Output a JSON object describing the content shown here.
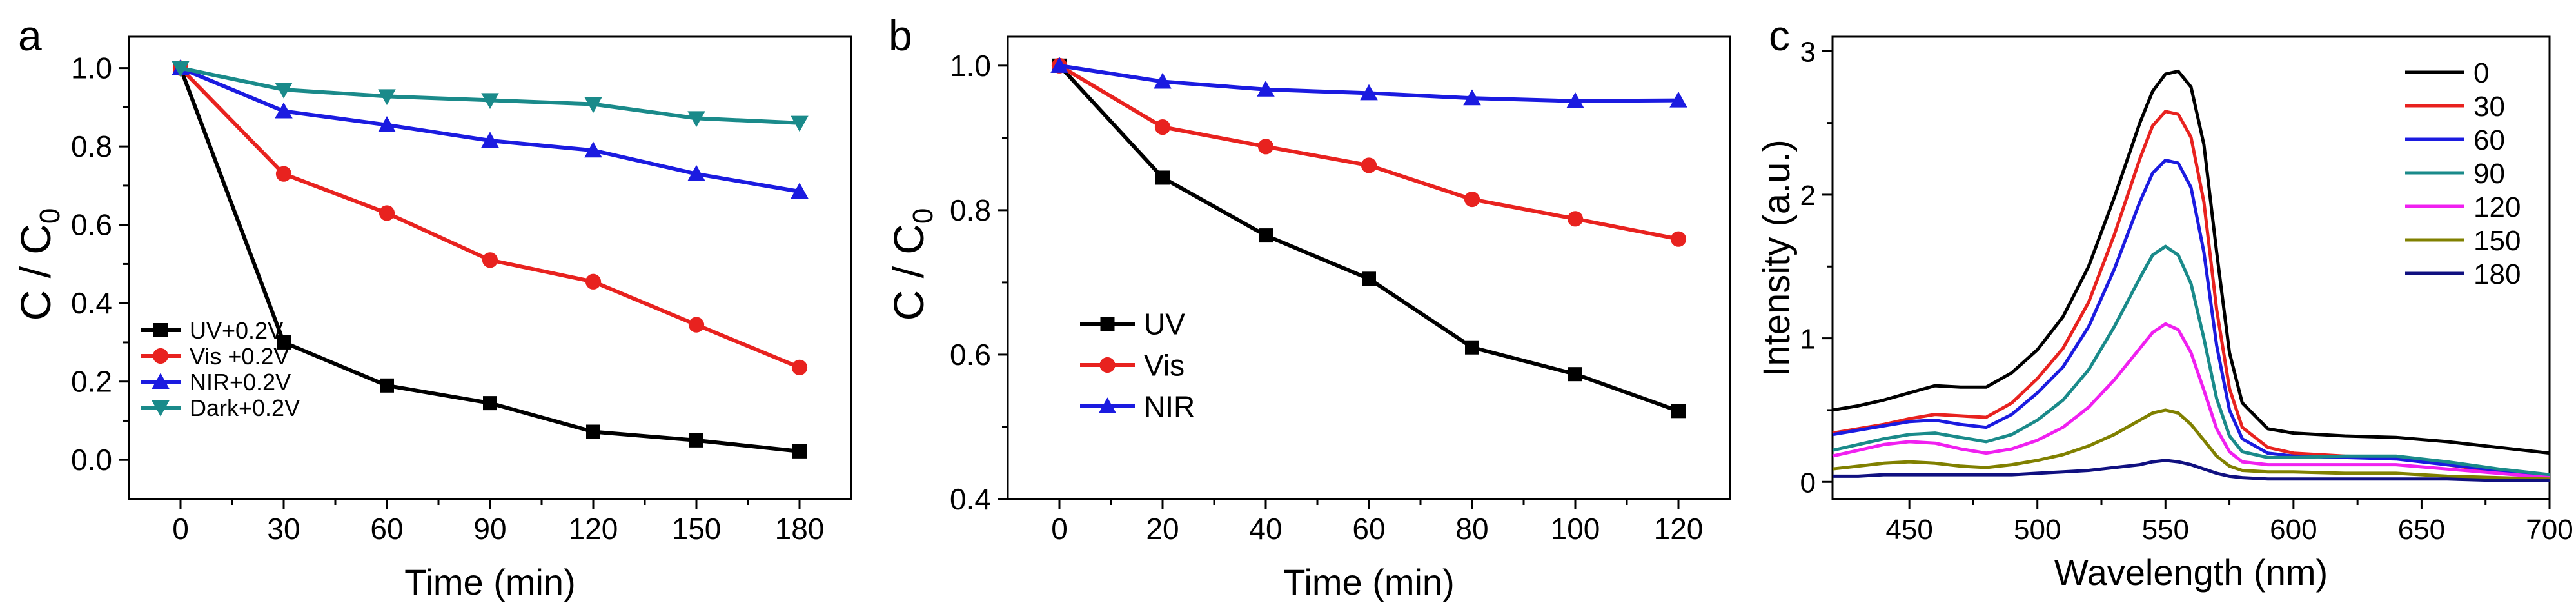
{
  "figure": {
    "panels": [
      {
        "letter": "a",
        "xlabel": "Time (min)",
        "ylabel_main": "C / C",
        "ylabel_sub": "0"
      },
      {
        "letter": "b",
        "xlabel": "Time (min)",
        "ylabel_main": "C / C",
        "ylabel_sub": "0"
      },
      {
        "letter": "c",
        "xlabel": "Wavelength (nm)",
        "ylabel_main": "Intensity (a.u.)",
        "ylabel_sub": ""
      }
    ]
  },
  "chart_data": [
    {
      "type": "line",
      "panel": "a",
      "xlabel": "Time (min)",
      "ylabel": "C / C0",
      "xlim": [
        -15,
        195
      ],
      "ylim": [
        -0.1,
        1.08
      ],
      "xticks": [
        0,
        30,
        60,
        90,
        120,
        150,
        180
      ],
      "yticks": [
        0.0,
        0.2,
        0.4,
        0.6,
        0.8,
        1.0
      ],
      "yticklabels": [
        "0.0",
        "0.2",
        "0.4",
        "0.6",
        "0.8",
        "1.0"
      ],
      "legend_position": "bottom-left",
      "x": [
        0,
        30,
        60,
        90,
        120,
        150,
        180
      ],
      "series": [
        {
          "name": "UV+0.2V",
          "color": "#000000",
          "marker": "square",
          "values": [
            1.0,
            0.3,
            0.19,
            0.145,
            0.072,
            0.05,
            0.022
          ]
        },
        {
          "name": "Vis +0.2V",
          "color": "#e8221f",
          "marker": "circle",
          "values": [
            1.0,
            0.73,
            0.63,
            0.51,
            0.455,
            0.345,
            0.236
          ]
        },
        {
          "name": "NIR+0.2V",
          "color": "#1b1be0",
          "marker": "triangle-up",
          "values": [
            1.0,
            0.89,
            0.855,
            0.815,
            0.79,
            0.73,
            0.685
          ]
        },
        {
          "name": "Dark+0.2V",
          "color": "#1a8a8a",
          "marker": "triangle-down",
          "values": [
            1.0,
            0.945,
            0.928,
            0.918,
            0.908,
            0.872,
            0.86
          ]
        }
      ]
    },
    {
      "type": "line",
      "panel": "b",
      "xlabel": "Time (min)",
      "ylabel": "C / C0",
      "xlim": [
        -10,
        130
      ],
      "ylim": [
        0.4,
        1.04
      ],
      "xticks": [
        0,
        20,
        40,
        60,
        80,
        100,
        120
      ],
      "yticks": [
        0.4,
        0.6,
        0.8,
        1.0
      ],
      "yticklabels": [
        "0.4",
        "0.6",
        "0.8",
        "1.0"
      ],
      "legend_position": "bottom-left",
      "x": [
        0,
        20,
        40,
        60,
        80,
        100,
        120
      ],
      "series": [
        {
          "name": "UV",
          "color": "#000000",
          "marker": "square",
          "values": [
            1.0,
            0.845,
            0.765,
            0.705,
            0.61,
            0.573,
            0.522
          ]
        },
        {
          "name": "Vis",
          "color": "#e8221f",
          "marker": "circle",
          "values": [
            1.0,
            0.915,
            0.888,
            0.862,
            0.815,
            0.788,
            0.76
          ]
        },
        {
          "name": "NIR",
          "color": "#1b1be0",
          "marker": "triangle-up",
          "values": [
            1.0,
            0.978,
            0.967,
            0.962,
            0.955,
            0.951,
            0.952
          ]
        }
      ]
    },
    {
      "type": "line",
      "panel": "c",
      "xlabel": "Wavelength (nm)",
      "ylabel": "Intensity (a.u.)",
      "xlim": [
        420,
        700
      ],
      "ylim": [
        -0.12,
        3.1
      ],
      "xticks": [
        450,
        500,
        550,
        600,
        650,
        700
      ],
      "yticks": [
        0,
        1,
        2,
        3
      ],
      "yticklabels": [
        "0",
        "1",
        "2",
        "3"
      ],
      "legend_position": "top-right",
      "x": [
        420,
        430,
        440,
        450,
        460,
        470,
        480,
        490,
        500,
        510,
        520,
        530,
        540,
        545,
        550,
        555,
        560,
        565,
        570,
        575,
        580,
        590,
        600,
        620,
        640,
        660,
        680,
        700
      ],
      "series": [
        {
          "name": "0",
          "color": "#000000",
          "values": [
            0.5,
            0.53,
            0.57,
            0.62,
            0.67,
            0.66,
            0.66,
            0.76,
            0.92,
            1.15,
            1.5,
            1.98,
            2.5,
            2.72,
            2.84,
            2.86,
            2.75,
            2.35,
            1.6,
            0.9,
            0.55,
            0.37,
            0.34,
            0.32,
            0.31,
            0.28,
            0.24,
            0.2
          ]
        },
        {
          "name": "30",
          "color": "#e8221f",
          "values": [
            0.34,
            0.37,
            0.4,
            0.44,
            0.47,
            0.46,
            0.45,
            0.55,
            0.72,
            0.93,
            1.25,
            1.72,
            2.25,
            2.48,
            2.58,
            2.56,
            2.4,
            1.95,
            1.2,
            0.65,
            0.38,
            0.24,
            0.2,
            0.18,
            0.17,
            0.12,
            0.07,
            0.04
          ]
        },
        {
          "name": "60",
          "color": "#1b1be0",
          "values": [
            0.33,
            0.36,
            0.39,
            0.42,
            0.43,
            0.4,
            0.38,
            0.47,
            0.62,
            0.8,
            1.08,
            1.48,
            1.95,
            2.15,
            2.24,
            2.22,
            2.05,
            1.6,
            0.95,
            0.5,
            0.3,
            0.2,
            0.18,
            0.17,
            0.16,
            0.12,
            0.08,
            0.05
          ]
        },
        {
          "name": "90",
          "color": "#1a8a8a",
          "values": [
            0.22,
            0.26,
            0.3,
            0.33,
            0.34,
            0.31,
            0.28,
            0.33,
            0.43,
            0.57,
            0.78,
            1.08,
            1.42,
            1.58,
            1.64,
            1.58,
            1.38,
            1.0,
            0.58,
            0.32,
            0.21,
            0.17,
            0.17,
            0.18,
            0.18,
            0.14,
            0.09,
            0.05
          ]
        },
        {
          "name": "120",
          "color": "#f020f0",
          "values": [
            0.18,
            0.22,
            0.26,
            0.28,
            0.27,
            0.23,
            0.2,
            0.23,
            0.29,
            0.38,
            0.52,
            0.71,
            0.93,
            1.04,
            1.1,
            1.06,
            0.9,
            0.64,
            0.37,
            0.21,
            0.14,
            0.12,
            0.12,
            0.12,
            0.12,
            0.09,
            0.06,
            0.03
          ]
        },
        {
          "name": "150",
          "color": "#808000",
          "values": [
            0.09,
            0.11,
            0.13,
            0.14,
            0.13,
            0.11,
            0.1,
            0.12,
            0.15,
            0.19,
            0.25,
            0.33,
            0.43,
            0.48,
            0.5,
            0.48,
            0.4,
            0.29,
            0.18,
            0.11,
            0.08,
            0.07,
            0.07,
            0.06,
            0.06,
            0.04,
            0.03,
            0.02
          ]
        },
        {
          "name": "180",
          "color": "#101080",
          "values": [
            0.04,
            0.04,
            0.05,
            0.05,
            0.05,
            0.05,
            0.05,
            0.05,
            0.06,
            0.07,
            0.08,
            0.1,
            0.12,
            0.14,
            0.15,
            0.14,
            0.12,
            0.09,
            0.06,
            0.04,
            0.03,
            0.02,
            0.02,
            0.02,
            0.02,
            0.02,
            0.01,
            0.01
          ]
        }
      ]
    }
  ]
}
